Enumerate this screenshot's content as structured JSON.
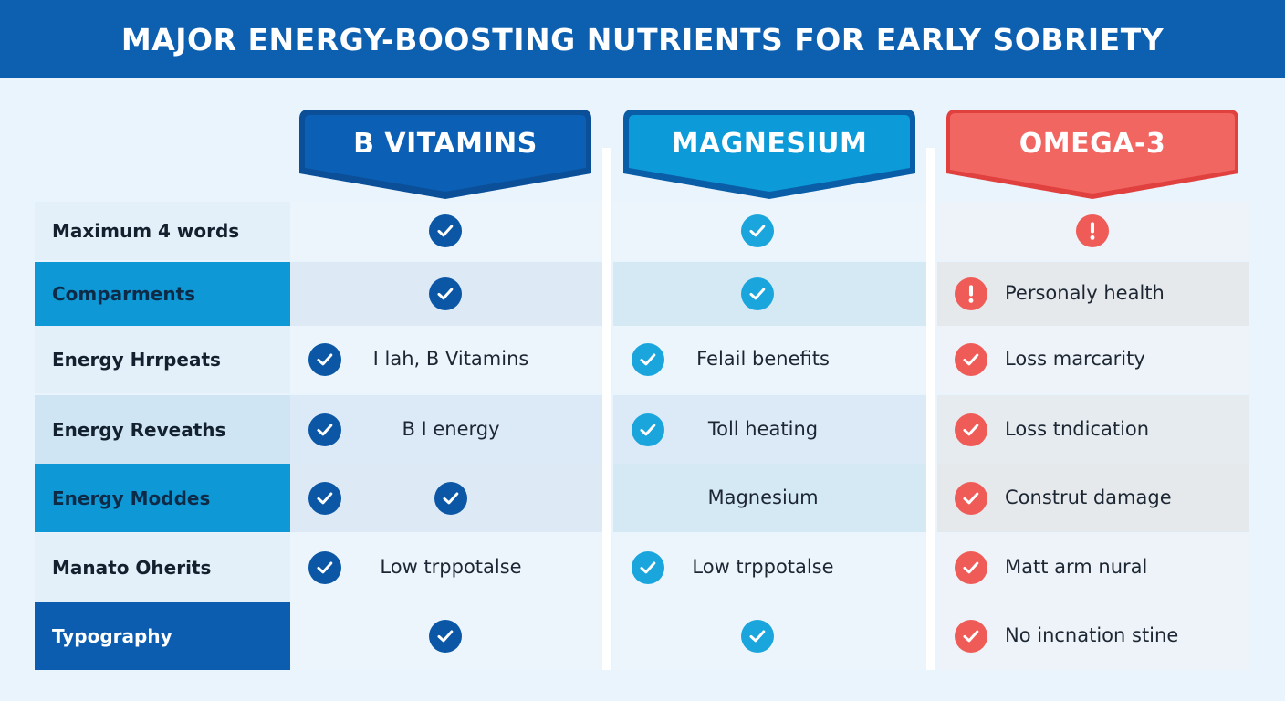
{
  "title": "MAJOR ENERGY-BOOSTING NUTRIENTS FOR EARLY SOBRIETY",
  "colors": {
    "title_bg": "#0d5fb0",
    "b_vitamins": "#0b5aaa",
    "magnesium": "#0c96d6",
    "omega3": "#f0605c",
    "check_b": "#0b57a6",
    "check_m": "#1aa6dc",
    "check_o": "#ef5b57"
  },
  "columns": [
    {
      "key": "b_vitamins",
      "label": "B VITAMINS"
    },
    {
      "key": "magnesium",
      "label": "MAGNESIUM"
    },
    {
      "key": "omega3",
      "label": "OMEGA-3"
    }
  ],
  "rows": [
    {
      "label": "Maximum 4 words",
      "style": "light",
      "b": {
        "icon": "check-icon",
        "text": ""
      },
      "m": {
        "icon": "check-icon",
        "text": ""
      },
      "o": {
        "icon": "exclamation-icon",
        "text": ""
      }
    },
    {
      "label": "Comparments",
      "style": "accent",
      "b": {
        "icon": "check-icon",
        "text": ""
      },
      "m": {
        "icon": "check-icon",
        "text": ""
      },
      "o": {
        "icon": "exclamation-icon",
        "text": "Personaly health"
      }
    },
    {
      "label": "Energy Hrrpeats",
      "style": "light",
      "b": {
        "icon": "check-icon",
        "text": "I lah, B Vitamins"
      },
      "m": {
        "icon": "check-icon",
        "text": "Felail benefits"
      },
      "o": {
        "icon": "check-icon",
        "text": "Loss marcarity"
      }
    },
    {
      "label": "Energy Reveaths",
      "style": "mid",
      "b": {
        "icon": "check-icon",
        "text": "B I energy"
      },
      "m": {
        "icon": "check-icon",
        "text": "Toll heating"
      },
      "o": {
        "icon": "check-icon",
        "text": "Loss tndication"
      }
    },
    {
      "label": "Energy Moddes",
      "style": "accent",
      "b": {
        "icon": "check-icon",
        "text": "",
        "extra_icon": "check-icon"
      },
      "m": {
        "icon": "",
        "text": "Magnesium"
      },
      "o": {
        "icon": "check-icon",
        "text": "Construt damage"
      }
    },
    {
      "label": "Manato Oherits",
      "style": "light",
      "b": {
        "icon": "check-icon",
        "text": "Low trppotalse"
      },
      "m": {
        "icon": "check-icon",
        "text": "Low trppotalse"
      },
      "o": {
        "icon": "check-icon",
        "text": "Matt arm nural"
      }
    },
    {
      "label": "Typography",
      "style": "dark",
      "b": {
        "icon": "check-icon",
        "text": ""
      },
      "m": {
        "icon": "check-icon",
        "text": ""
      },
      "o": {
        "icon": "check-icon",
        "text": "No incnation stine"
      }
    }
  ]
}
